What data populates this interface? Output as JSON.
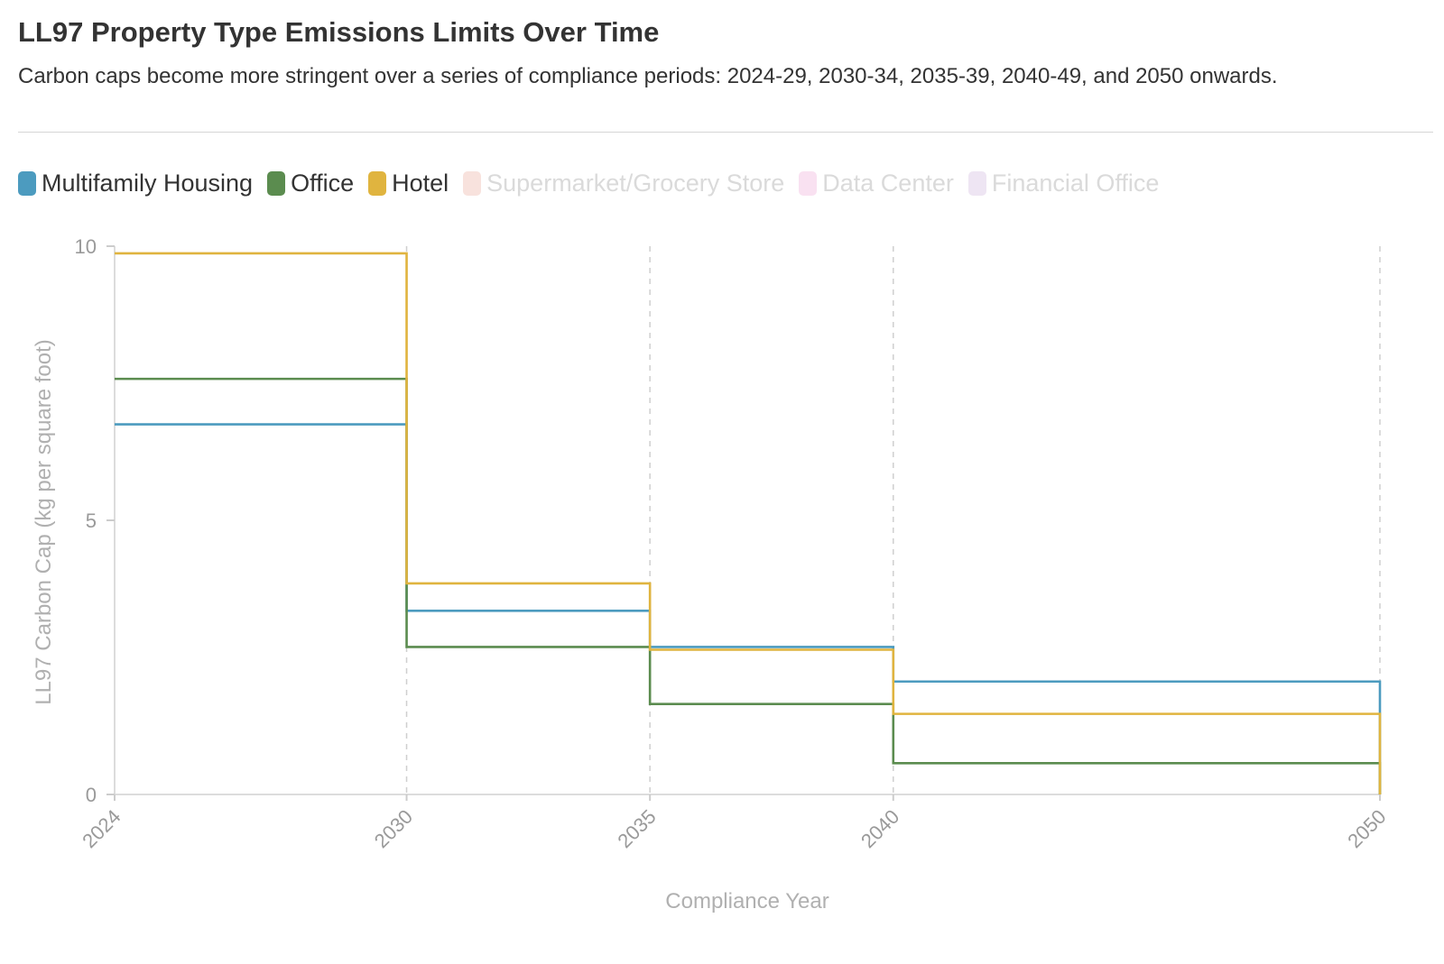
{
  "header": {
    "title": "LL97 Property Type Emissions Limits Over Time",
    "subtitle": "Carbon caps become more stringent over a series of compliance periods: 2024-29, 2030-34, 2035-39, 2040-49, and 2050 onwards."
  },
  "legend": [
    {
      "label": "Multifamily Housing",
      "color": "#4c9bbf",
      "active": true
    },
    {
      "label": "Office",
      "color": "#5b8c4f",
      "active": true
    },
    {
      "label": "Hotel",
      "color": "#e0b43f",
      "active": true
    },
    {
      "label": "Supermarket/Grocery Store",
      "color": "#e8a090",
      "active": false
    },
    {
      "label": "Data Center",
      "color": "#ec9bd0",
      "active": false
    },
    {
      "label": "Financial Office",
      "color": "#c8a8d8",
      "active": false
    }
  ],
  "chart_data": {
    "type": "line",
    "step": true,
    "xlabel": "Compliance Year",
    "ylabel": "LL97 Carbon Cap (kg per square foot)",
    "x_ticks": [
      "2024",
      "2030",
      "2035",
      "2040",
      "2050"
    ],
    "y_ticks": [
      "0",
      "5",
      "10"
    ],
    "xlim": [
      2024,
      2050
    ],
    "ylim": [
      0,
      10
    ],
    "vertical_grid": true,
    "series": [
      {
        "name": "Multifamily Housing",
        "color": "#4c9bbf",
        "x": [
          2024,
          2030,
          2035,
          2040,
          2050
        ],
        "values": [
          6.75,
          3.35,
          2.69,
          2.06,
          0
        ]
      },
      {
        "name": "Office",
        "color": "#5b8c4f",
        "x": [
          2024,
          2030,
          2035,
          2040,
          2050
        ],
        "values": [
          7.58,
          2.69,
          1.65,
          0.57,
          0
        ]
      },
      {
        "name": "Hotel",
        "color": "#e0b43f",
        "x": [
          2024,
          2030,
          2035,
          2040,
          2050
        ],
        "values": [
          9.87,
          3.85,
          2.64,
          1.47,
          0
        ]
      }
    ]
  }
}
